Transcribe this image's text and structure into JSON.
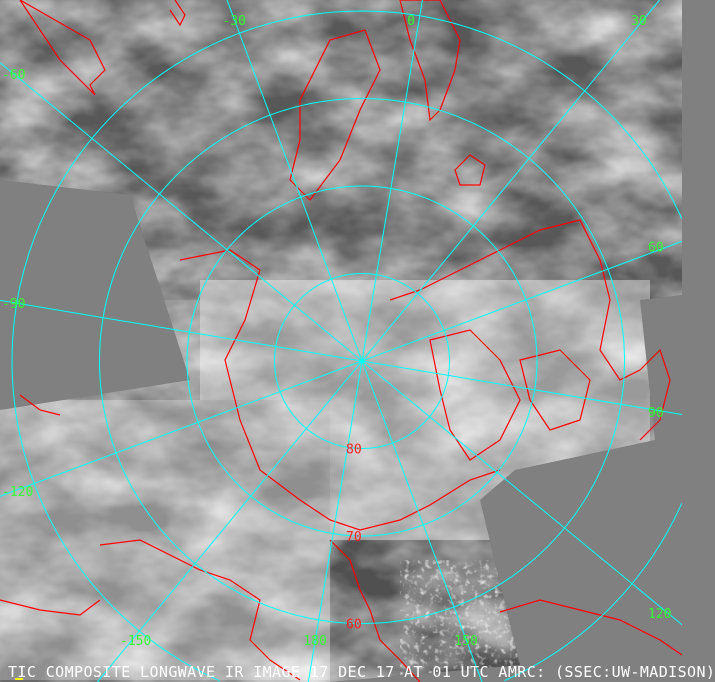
{
  "caption": "TIC COMPOSITE LONGWAVE IR IMAGE 17 DEC 17 AT 01 UTC AMRC: (SSEC:UW-MADISON)",
  "colors": {
    "background": "#808080",
    "grid": "#00ffff",
    "coastline": "#ff0000",
    "longitude_labels": "#33ff33",
    "latitude_labels": "#ff2020",
    "caption": "#ffffff"
  },
  "projection": "north polar stereographic",
  "latitude_circles": [
    {
      "lat": 80,
      "label": "80"
    },
    {
      "lat": 70,
      "label": "70"
    },
    {
      "lat": 60,
      "label": "60"
    },
    {
      "lat": 50,
      "label": ""
    }
  ],
  "longitude_lines": [
    {
      "lon": 0,
      "label": "0"
    },
    {
      "lon": 30,
      "label": "30"
    },
    {
      "lon": 60,
      "label": "60"
    },
    {
      "lon": 90,
      "label": "90"
    },
    {
      "lon": 120,
      "label": "120"
    },
    {
      "lon": 150,
      "label": "150"
    },
    {
      "lon": 180,
      "label": "180"
    },
    {
      "lon": -150,
      "label": "-150"
    },
    {
      "lon": -120,
      "label": "-120"
    },
    {
      "lon": -90,
      "label": "-90"
    },
    {
      "lon": -60,
      "label": "-60"
    },
    {
      "lon": -30,
      "label": "-30"
    }
  ]
}
